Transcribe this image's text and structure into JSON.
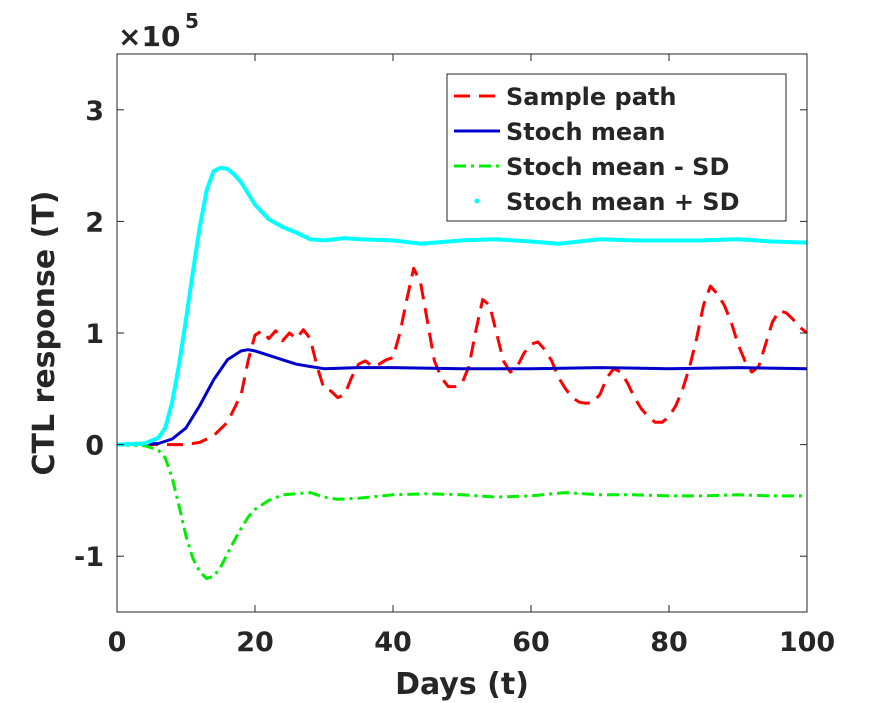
{
  "chart_data": {
    "type": "line",
    "title": "",
    "xlabel": "Days (t)",
    "ylabel": "CTL response (T)",
    "y_exponent": {
      "base": "×10",
      "power": "5",
      "multiplier": 100000
    },
    "xlim": [
      0,
      100
    ],
    "ylim": [
      -1.5,
      3.5
    ],
    "x_ticks": [
      0,
      20,
      40,
      60,
      80,
      100
    ],
    "y_ticks": [
      -1,
      0,
      1,
      2,
      3
    ],
    "x_tick_labels": [
      "0",
      "20",
      "40",
      "60",
      "80",
      "100"
    ],
    "y_tick_labels": [
      "-1",
      "0",
      "1",
      "2",
      "3"
    ],
    "grid": false,
    "legend_position": "top-right",
    "series": [
      {
        "name": "Sample path",
        "color": "#ff0000",
        "style": "dashed",
        "x": [
          0,
          5,
          10,
          12,
          14,
          16,
          18,
          19,
          20,
          21,
          22,
          23,
          24,
          25,
          26,
          27,
          28,
          29,
          30,
          31,
          32,
          33,
          34,
          35,
          36,
          37,
          38,
          39,
          40,
          41,
          42,
          43,
          44,
          45,
          46,
          47,
          48,
          49,
          50,
          51,
          52,
          53,
          54,
          55,
          56,
          57,
          58,
          59,
          60,
          61,
          62,
          63,
          64,
          65,
          66,
          67,
          68,
          69,
          70,
          71,
          72,
          73,
          74,
          75,
          76,
          77,
          78,
          79,
          80,
          81,
          82,
          83,
          84,
          85,
          86,
          87,
          88,
          89,
          90,
          91,
          92,
          93,
          94,
          95,
          96,
          97,
          98,
          99,
          100
        ],
        "y": [
          0,
          0,
          0,
          0.02,
          0.08,
          0.2,
          0.45,
          0.75,
          0.98,
          1.02,
          0.95,
          1.02,
          0.93,
          1.0,
          0.95,
          1.03,
          0.95,
          0.7,
          0.5,
          0.48,
          0.42,
          0.45,
          0.6,
          0.72,
          0.75,
          0.7,
          0.72,
          0.76,
          0.78,
          1.0,
          1.3,
          1.58,
          1.45,
          1.1,
          0.75,
          0.6,
          0.52,
          0.52,
          0.55,
          0.7,
          1.02,
          1.3,
          1.25,
          1.0,
          0.75,
          0.65,
          0.7,
          0.82,
          0.9,
          0.92,
          0.85,
          0.75,
          0.6,
          0.5,
          0.42,
          0.38,
          0.37,
          0.38,
          0.45,
          0.6,
          0.68,
          0.65,
          0.55,
          0.42,
          0.32,
          0.25,
          0.2,
          0.2,
          0.25,
          0.35,
          0.5,
          0.7,
          0.95,
          1.25,
          1.42,
          1.35,
          1.25,
          1.1,
          0.9,
          0.75,
          0.65,
          0.7,
          0.9,
          1.1,
          1.2,
          1.18,
          1.12,
          1.05,
          1.0
        ]
      },
      {
        "name": "Stoch mean",
        "color": "#0000cc",
        "style": "solid",
        "x": [
          0,
          4,
          6,
          8,
          10,
          12,
          14,
          16,
          18,
          19,
          20,
          22,
          24,
          26,
          28,
          30,
          35,
          40,
          50,
          60,
          70,
          80,
          90,
          100
        ],
        "y": [
          0,
          0.005,
          0.01,
          0.05,
          0.15,
          0.35,
          0.58,
          0.76,
          0.84,
          0.85,
          0.84,
          0.8,
          0.76,
          0.72,
          0.7,
          0.68,
          0.69,
          0.69,
          0.68,
          0.68,
          0.69,
          0.68,
          0.69,
          0.68
        ]
      },
      {
        "name": "Stoch mean - SD",
        "color": "#00ee00",
        "style": "dashdot",
        "x": [
          0,
          4,
          6,
          7,
          8,
          9,
          10,
          11,
          12,
          13,
          14,
          15,
          16,
          17,
          18,
          19,
          20,
          22,
          24,
          26,
          28,
          30,
          32,
          35,
          40,
          45,
          50,
          55,
          60,
          65,
          70,
          75,
          80,
          85,
          90,
          95,
          100
        ],
        "y": [
          0,
          -0.01,
          -0.05,
          -0.12,
          -0.3,
          -0.55,
          -0.82,
          -1.02,
          -1.14,
          -1.2,
          -1.18,
          -1.1,
          -0.98,
          -0.86,
          -0.75,
          -0.65,
          -0.58,
          -0.5,
          -0.45,
          -0.44,
          -0.43,
          -0.47,
          -0.49,
          -0.48,
          -0.45,
          -0.44,
          -0.45,
          -0.47,
          -0.46,
          -0.43,
          -0.45,
          -0.45,
          -0.46,
          -0.46,
          -0.45,
          -0.46,
          -0.46
        ]
      },
      {
        "name": "Stoch mean + SD",
        "color": "#00ffff",
        "style": "dotted",
        "x": [
          0,
          4,
          6,
          7,
          8,
          9,
          10,
          11,
          12,
          13,
          14,
          15,
          16,
          17,
          18,
          19,
          20,
          22,
          24,
          26,
          28,
          30,
          33,
          35,
          40,
          44,
          50,
          55,
          60,
          64,
          70,
          75,
          80,
          85,
          90,
          95,
          100
        ],
        "y": [
          0,
          0.01,
          0.06,
          0.15,
          0.38,
          0.72,
          1.12,
          1.55,
          1.95,
          2.28,
          2.45,
          2.48,
          2.47,
          2.42,
          2.35,
          2.25,
          2.15,
          2.02,
          1.95,
          1.9,
          1.84,
          1.83,
          1.85,
          1.84,
          1.83,
          1.8,
          1.83,
          1.84,
          1.82,
          1.8,
          1.84,
          1.83,
          1.83,
          1.83,
          1.84,
          1.82,
          1.81
        ]
      }
    ]
  }
}
